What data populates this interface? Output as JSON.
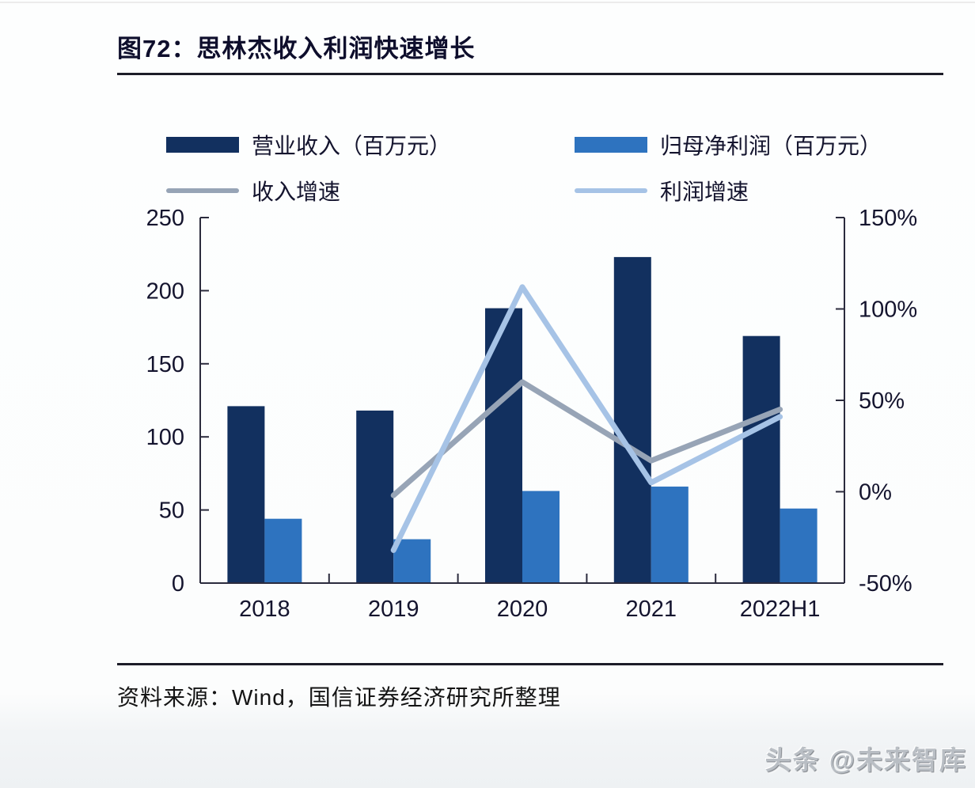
{
  "figure": {
    "title": "图72：思林杰收入利润快速增长"
  },
  "source": {
    "text": "资料来源：Wind，国信证券经济研究所整理"
  },
  "watermark": {
    "text": "头条 @未来智库"
  },
  "colors": {
    "revenue_bar": "#12305f",
    "profit_bar": "#2e73bf",
    "revenue_growth_line": "#97a4b6",
    "profit_growth_line": "#a6c3e6",
    "axis": "#2b2b3d",
    "tick_label": "#14142e"
  },
  "chart_data": {
    "type": "bar+line combo, dual axis",
    "categories": [
      "2018",
      "2019",
      "2020",
      "2021",
      "2022H1"
    ],
    "bar_series": [
      {
        "name": "营业收入（百万元）",
        "axis": "left",
        "color": "#12305f",
        "values": [
          121,
          118,
          188,
          223,
          169
        ]
      },
      {
        "name": "归母净利润（百万元）",
        "axis": "left",
        "color": "#2e73bf",
        "values": [
          44,
          30,
          63,
          66,
          51
        ]
      }
    ],
    "line_series": [
      {
        "name": "收入增速",
        "axis": "right",
        "color": "#97a4b6",
        "values": [
          null,
          -2,
          60,
          17,
          45
        ]
      },
      {
        "name": "利润增速",
        "axis": "right",
        "color": "#a6c3e6",
        "values": [
          null,
          -32,
          112,
          5,
          41
        ]
      }
    ],
    "left_axis": {
      "min": 0,
      "max": 250,
      "step": 50,
      "tick_labels": [
        "0",
        "50",
        "100",
        "150",
        "200",
        "250"
      ]
    },
    "right_axis": {
      "min": -50,
      "max": 150,
      "step": 50,
      "tick_labels": [
        "-50%",
        "0%",
        "50%",
        "100%",
        "150%"
      ]
    },
    "grid": "off",
    "legend_position": "top, two columns"
  }
}
